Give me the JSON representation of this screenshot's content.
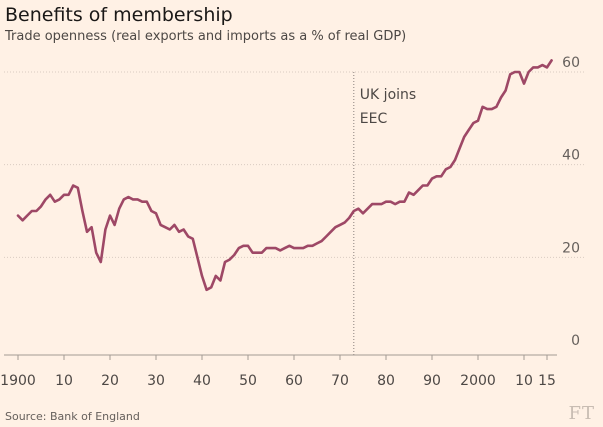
{
  "header": {
    "title": "Benefits of membership",
    "subtitle": "Trade openness (real exports and imports as a % of real GDP)"
  },
  "footer": {
    "source": "Source: Bank of England",
    "logo": "FT"
  },
  "colors": {
    "background": "#fff1e5",
    "line": "#9e4866",
    "grid": "#d9ccc1",
    "marker": "#8a817c"
  },
  "chart_data": {
    "type": "line",
    "title": "Benefits of membership",
    "subtitle": "Trade openness (real exports and imports as a % of real GDP)",
    "xlabel": "",
    "ylabel": "",
    "xlim": [
      1897,
      2018
    ],
    "ylim": [
      0,
      62
    ],
    "y_ticks": [
      0,
      20,
      40,
      60
    ],
    "x_ticks": [
      {
        "value": 1900,
        "label": "1900"
      },
      {
        "value": 1910,
        "label": "10"
      },
      {
        "value": 1920,
        "label": "20"
      },
      {
        "value": 1930,
        "label": "30"
      },
      {
        "value": 1940,
        "label": "40"
      },
      {
        "value": 1950,
        "label": "50"
      },
      {
        "value": 1960,
        "label": "60"
      },
      {
        "value": 1970,
        "label": "70"
      },
      {
        "value": 1980,
        "label": "80"
      },
      {
        "value": 1990,
        "label": "90"
      },
      {
        "value": 2000,
        "label": "2000"
      },
      {
        "value": 2010,
        "label": "10"
      },
      {
        "value": 2015,
        "label": "15"
      }
    ],
    "grid": true,
    "y_axis_side": "right",
    "annotation": {
      "year": 1973,
      "lines": [
        "UK joins",
        "EEC"
      ]
    },
    "series": [
      {
        "x": [
          1900,
          1901,
          1902,
          1903,
          1904,
          1905,
          1906,
          1907,
          1908,
          1909,
          1910,
          1911,
          1912,
          1913,
          1914,
          1915,
          1916,
          1917,
          1918,
          1919,
          1920,
          1921,
          1922,
          1923,
          1924,
          1925,
          1926,
          1927,
          1928,
          1929,
          1930,
          1931,
          1932,
          1933,
          1934,
          1935,
          1936,
          1937,
          1938,
          1939,
          1940,
          1941,
          1942,
          1943,
          1944,
          1945,
          1946,
          1947,
          1948,
          1949,
          1950,
          1951,
          1952,
          1953,
          1954,
          1955,
          1956,
          1957,
          1958,
          1959,
          1960,
          1961,
          1962,
          1963,
          1964,
          1965,
          1966,
          1967,
          1968,
          1969,
          1970,
          1971,
          1972,
          1973,
          1974,
          1975,
          1976,
          1977,
          1978,
          1979,
          1980,
          1981,
          1982,
          1983,
          1984,
          1985,
          1986,
          1987,
          1988,
          1989,
          1990,
          1991,
          1992,
          1993,
          1994,
          1995,
          1996,
          1997,
          1998,
          1999,
          2000,
          2001,
          2002,
          2003,
          2004,
          2005,
          2006,
          2007,
          2008,
          2009,
          2010,
          2011,
          2012,
          2013,
          2014,
          2015,
          2016
        ],
        "values": [
          29.0,
          28.0,
          29.0,
          30.0,
          30.0,
          31.0,
          32.5,
          33.5,
          32.0,
          32.5,
          33.5,
          33.5,
          35.5,
          35.0,
          30.0,
          25.5,
          26.5,
          21.0,
          19.0,
          26.0,
          29.0,
          27.0,
          30.5,
          32.5,
          33.0,
          32.5,
          32.5,
          32.0,
          32.0,
          30.0,
          29.5,
          27.0,
          26.5,
          26.0,
          27.0,
          25.5,
          26.0,
          24.5,
          24.0,
          20.0,
          16.0,
          13.0,
          13.5,
          16.0,
          15.0,
          19.0,
          19.5,
          20.5,
          22.0,
          22.5,
          22.5,
          21.0,
          21.0,
          21.0,
          22.0,
          22.0,
          22.0,
          21.5,
          22.0,
          22.5,
          22.0,
          22.0,
          22.0,
          22.5,
          22.5,
          23.0,
          23.5,
          24.5,
          25.5,
          26.5,
          27.0,
          27.5,
          28.5,
          30.0,
          30.5,
          29.5,
          30.5,
          31.5,
          31.5,
          31.5,
          32.0,
          32.0,
          31.5,
          32.0,
          32.0,
          34.0,
          33.5,
          34.5,
          35.5,
          35.5,
          37.0,
          37.5,
          37.5,
          39.0,
          39.5,
          41.0,
          43.5,
          46.0,
          47.5,
          49.0,
          49.5,
          52.5,
          52.0,
          52.0,
          52.5,
          54.5,
          56.0,
          59.5,
          60.0,
          60.0,
          57.5,
          60.0,
          61.0,
          61.0,
          61.5,
          61.0,
          62.5
        ]
      }
    ]
  }
}
